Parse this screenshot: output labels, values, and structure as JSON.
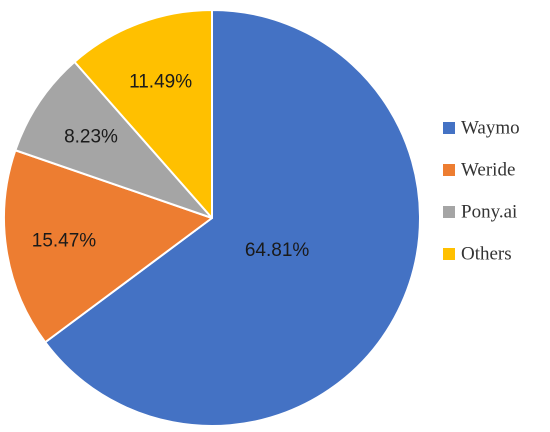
{
  "chart_data": {
    "type": "pie",
    "title": "",
    "categories": [
      "Waymo",
      "Weride",
      "Pony.ai",
      "Others"
    ],
    "values": [
      64.81,
      15.47,
      8.23,
      11.49
    ],
    "labels": [
      "64.81%",
      "15.47%",
      "8.23%",
      "11.49%"
    ],
    "colors": [
      "#4472C4",
      "#ED7D31",
      "#A5A5A5",
      "#FFC000"
    ],
    "start_angle_deg": 0,
    "direction": "clockwise",
    "legend": "right"
  }
}
